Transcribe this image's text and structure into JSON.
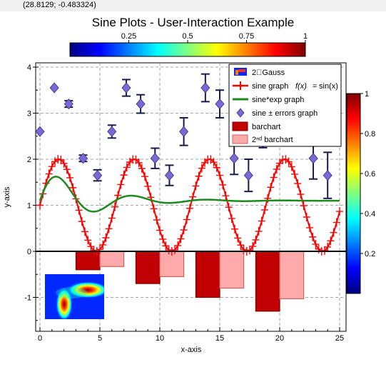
{
  "status": {
    "coords": "(28.8129; -0.483324)"
  },
  "colors": {
    "sine": "#ff0000",
    "sineexp": "#1c8a1c",
    "errors": "#7b68d6",
    "errbar": "#1a1a4a",
    "bar1": "#c00000",
    "bar2": "#ffaaaa",
    "bar2edge": "#d06060"
  },
  "chart_data": {
    "title": "Sine Plots - User-Interaction Example",
    "xlabel": "x-axis",
    "ylabel": "y-axis",
    "xlim": [
      0,
      25
    ],
    "ylim": [
      -1.5,
      4
    ],
    "xticks": [
      0,
      5,
      10,
      15,
      20,
      25
    ],
    "yticks": [
      -1,
      0,
      1,
      2,
      3,
      4
    ],
    "grid": true,
    "legend_position": "top-right",
    "legend": [
      "2\u0000Gauss",
      "sine graph f(x) = sin(x)",
      "sine*exp graph",
      "sine ± errors graph",
      "barchart",
      "2ⁿᵈ barchart"
    ],
    "legend_formula": {
      "fx": "f(x)",
      "eq": "=",
      "sin": "sin(x)"
    },
    "top_colorbar": {
      "ticks": [
        "0.25",
        "0.5",
        "0.75",
        "1"
      ],
      "tick_values": [
        0.25,
        0.5,
        0.75,
        1
      ]
    },
    "right_colorbar": {
      "ticks": [
        "0.2",
        "0.4",
        "0.6",
        "0.8",
        "1"
      ],
      "tick_values": [
        0.2,
        0.4,
        0.6,
        0.8,
        1
      ]
    },
    "sine": {
      "expression": "1 + sin(x)",
      "x_range": [
        0,
        25
      ],
      "marker_step": 0.25
    },
    "sine_exp": {
      "expression": "1.1 + 0.75*sin(x)*exp(-x/4)",
      "x_range": [
        0,
        25
      ]
    },
    "errors": {
      "x": [
        0,
        1.2,
        2.4,
        3.6,
        4.8,
        6,
        7.2,
        8.4,
        9.6,
        10.8,
        12,
        13.8,
        15,
        16.2,
        17.4,
        18.6,
        19.8,
        21,
        22.8,
        24
      ],
      "y": [
        2.6,
        3.55,
        3.2,
        2.02,
        1.65,
        2.6,
        3.55,
        3.2,
        2.02,
        1.65,
        2.6,
        3.55,
        3.2,
        2.02,
        1.65,
        2.6,
        3.55,
        3.2,
        2.02,
        1.65
      ],
      "err": [
        0,
        0,
        0.07,
        0.07,
        0.12,
        0.14,
        0.18,
        0.2,
        0.22,
        0.22,
        0.3,
        0.3,
        0.3,
        0.35,
        0.35,
        0.35,
        0.4,
        0.45,
        0.45,
        0.5
      ]
    },
    "barchart": {
      "x": [
        4,
        9,
        14,
        19
      ],
      "values": [
        -0.4,
        -0.7,
        -1.0,
        -1.3
      ],
      "width": 2
    },
    "barchart2": {
      "x": [
        6,
        11,
        16,
        21
      ],
      "values": [
        -0.33,
        -0.55,
        -0.8,
        -1.03
      ],
      "width": 2
    },
    "gauss_inset": {
      "description": "2D Gauss image"
    }
  }
}
